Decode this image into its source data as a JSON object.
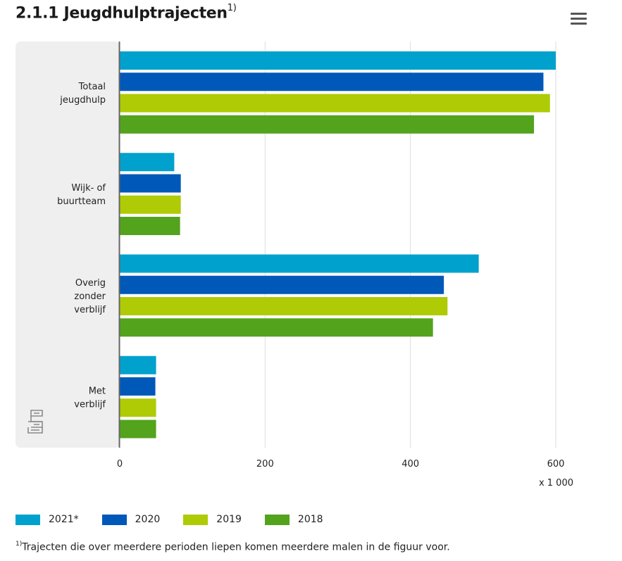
{
  "header": {
    "title": "2.1.1 Jeugdhulptrajecten",
    "title_sup": "1)",
    "menu_icon": "hamburger-menu-icon"
  },
  "footnote": {
    "marker": "1)",
    "text": "Trajecten die over meerdere perioden liepen komen meerdere malen in de figuur voor."
  },
  "logo": {
    "name": "cbs-logo-icon",
    "text": "cbs"
  },
  "colors": {
    "2021*": "#00a1cd",
    "2020": "#0058b8",
    "2019": "#afcb05",
    "2018": "#53a31d",
    "plot_band": "#efefef",
    "grid": "#dddddd",
    "axis": "#666666"
  },
  "chart_data": {
    "type": "bar",
    "orientation": "horizontal",
    "categories": [
      "Totaal jeugdhulp",
      "Wijk- of buurtteam",
      "Overig zonder verblijf",
      "Met verblijf"
    ],
    "category_lines": [
      [
        "Totaal",
        "jeugdhulp"
      ],
      [
        "Wijk- of",
        "buurtteam"
      ],
      [
        "Overig",
        "zonder",
        "verblijf"
      ],
      [
        "Met",
        "verblijf"
      ]
    ],
    "series": [
      {
        "name": "2021*",
        "values": [
          600,
          75,
          494,
          50
        ]
      },
      {
        "name": "2020",
        "values": [
          583,
          84,
          446,
          49
        ]
      },
      {
        "name": "2019",
        "values": [
          592,
          84,
          451,
          50
        ]
      },
      {
        "name": "2018",
        "values": [
          570,
          83,
          431,
          50
        ]
      }
    ],
    "xlim": [
      0,
      600
    ],
    "xticks": [
      0,
      200,
      400,
      600
    ],
    "xunit": "x 1 000",
    "grid": true,
    "legend_position": "bottom"
  }
}
